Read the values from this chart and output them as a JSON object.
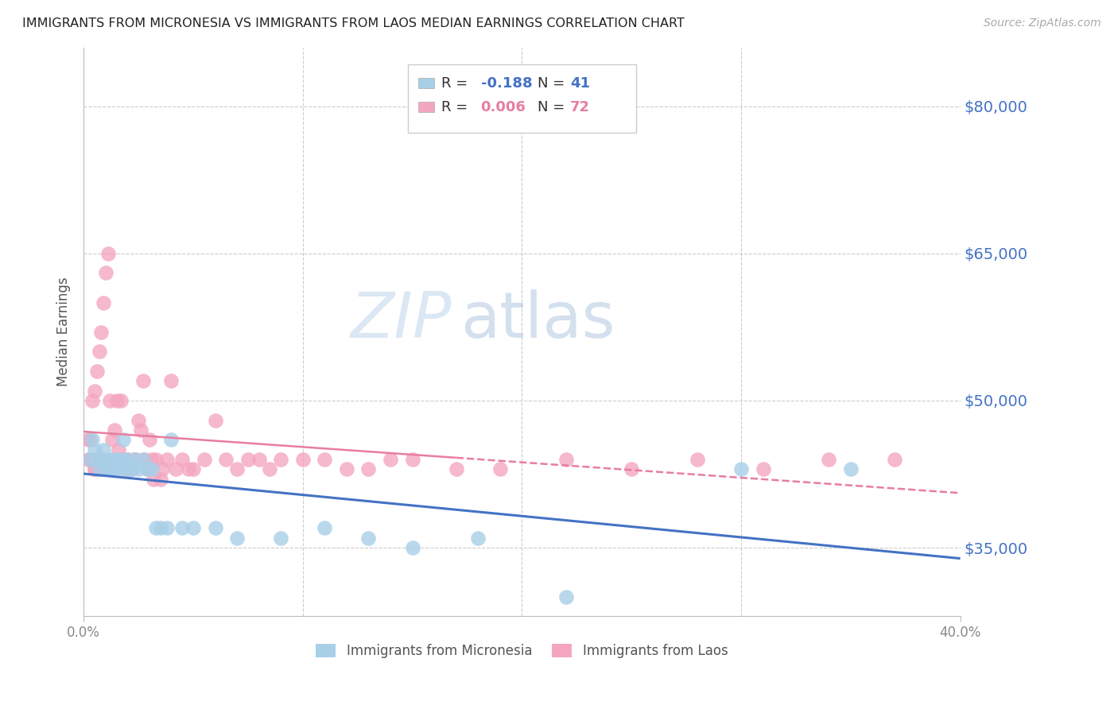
{
  "title": "IMMIGRANTS FROM MICRONESIA VS IMMIGRANTS FROM LAOS MEDIAN EARNINGS CORRELATION CHART",
  "source": "Source: ZipAtlas.com",
  "ylabel": "Median Earnings",
  "ytick_labels": [
    "$80,000",
    "$65,000",
    "$50,000",
    "$35,000"
  ],
  "ytick_values": [
    80000,
    65000,
    50000,
    35000
  ],
  "xlim": [
    0.0,
    0.4
  ],
  "ylim": [
    28000,
    86000
  ],
  "micronesia_color": "#a8cfe8",
  "laos_color": "#f4a6c0",
  "mic_line_color": "#4472c4",
  "laos_line_color": "#e87da0",
  "micronesia_R": "-0.188",
  "micronesia_N": "41",
  "laos_R": "0.006",
  "laos_N": "72",
  "legend_label_micronesia": "Immigrants from Micronesia",
  "legend_label_laos": "Immigrants from Laos",
  "micronesia_x": [
    0.003,
    0.004,
    0.005,
    0.006,
    0.007,
    0.008,
    0.009,
    0.01,
    0.011,
    0.012,
    0.013,
    0.014,
    0.015,
    0.016,
    0.017,
    0.018,
    0.019,
    0.02,
    0.021,
    0.022,
    0.023,
    0.025,
    0.027,
    0.029,
    0.031,
    0.033,
    0.035,
    0.038,
    0.04,
    0.045,
    0.05,
    0.06,
    0.07,
    0.09,
    0.11,
    0.13,
    0.15,
    0.18,
    0.22,
    0.3,
    0.35
  ],
  "micronesia_y": [
    44000,
    46000,
    45000,
    44000,
    43000,
    44000,
    45000,
    43000,
    44000,
    43000,
    44000,
    43000,
    44000,
    43000,
    44000,
    46000,
    43000,
    44000,
    43000,
    43000,
    44000,
    43000,
    44000,
    43000,
    43000,
    37000,
    37000,
    37000,
    46000,
    37000,
    37000,
    37000,
    36000,
    36000,
    37000,
    36000,
    35000,
    36000,
    30000,
    43000,
    43000
  ],
  "laos_x": [
    0.002,
    0.003,
    0.004,
    0.005,
    0.006,
    0.007,
    0.008,
    0.009,
    0.01,
    0.011,
    0.012,
    0.013,
    0.014,
    0.015,
    0.016,
    0.017,
    0.018,
    0.019,
    0.02,
    0.021,
    0.022,
    0.023,
    0.024,
    0.025,
    0.026,
    0.027,
    0.028,
    0.029,
    0.03,
    0.031,
    0.032,
    0.033,
    0.035,
    0.036,
    0.038,
    0.04,
    0.042,
    0.045,
    0.048,
    0.05,
    0.055,
    0.06,
    0.065,
    0.07,
    0.075,
    0.08,
    0.085,
    0.09,
    0.1,
    0.11,
    0.12,
    0.13,
    0.14,
    0.15,
    0.17,
    0.19,
    0.22,
    0.25,
    0.28,
    0.31,
    0.34,
    0.37,
    0.002,
    0.003,
    0.004,
    0.005,
    0.005,
    0.006,
    0.007,
    0.008,
    0.009,
    0.01
  ],
  "laos_y": [
    44000,
    44000,
    50000,
    51000,
    53000,
    55000,
    57000,
    60000,
    63000,
    65000,
    50000,
    46000,
    47000,
    50000,
    45000,
    50000,
    44000,
    43000,
    44000,
    43000,
    43000,
    44000,
    44000,
    48000,
    47000,
    52000,
    44000,
    43000,
    46000,
    44000,
    42000,
    44000,
    42000,
    43000,
    44000,
    52000,
    43000,
    44000,
    43000,
    43000,
    44000,
    48000,
    44000,
    43000,
    44000,
    44000,
    43000,
    44000,
    44000,
    44000,
    43000,
    43000,
    44000,
    44000,
    43000,
    43000,
    44000,
    43000,
    44000,
    43000,
    44000,
    44000,
    46000,
    46000,
    44000,
    43000,
    43000,
    44000,
    44000,
    43000,
    44000,
    43000
  ],
  "grid_color": "#cccccc",
  "spine_color": "#bbbbbb",
  "tick_color": "#888888",
  "background_color": "#ffffff"
}
